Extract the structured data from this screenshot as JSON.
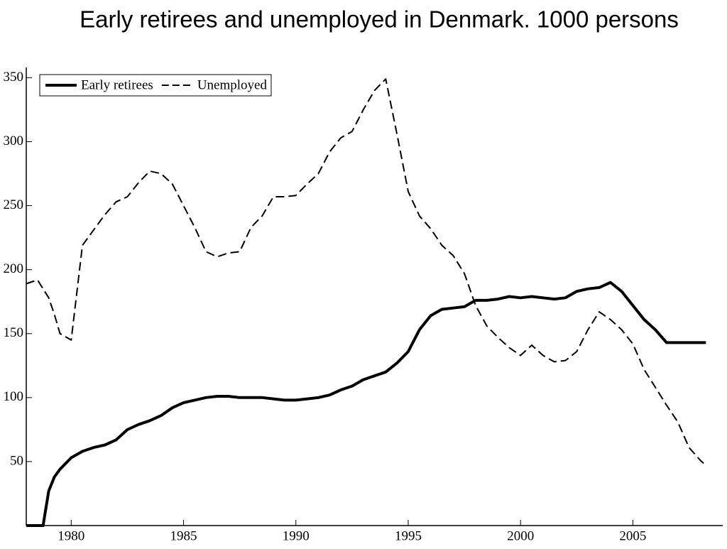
{
  "chart_data": {
    "type": "line",
    "title": "Early retirees and unemployed in Denmark. 1000 persons",
    "x": [
      1978,
      1978.5,
      1978.75,
      1979,
      1979.25,
      1979.5,
      1980,
      1980.5,
      1981,
      1981.5,
      1982,
      1982.5,
      1983,
      1983.5,
      1984,
      1984.5,
      1985,
      1985.5,
      1986,
      1986.5,
      1987,
      1987.5,
      1988,
      1988.5,
      1989,
      1989.5,
      1990,
      1990.5,
      1991,
      1991.5,
      1992,
      1992.5,
      1993,
      1993.5,
      1994,
      1994.5,
      1995,
      1995.5,
      1996,
      1996.5,
      1997,
      1997.5,
      1998,
      1998.5,
      1999,
      1999.5,
      2000,
      2000.5,
      2001,
      2001.5,
      2002,
      2002.5,
      2003,
      2003.5,
      2004,
      2004.5,
      2005,
      2005.5,
      2006,
      2006.5,
      2007,
      2007.5,
      2008,
      2008.25
    ],
    "series": [
      {
        "name": "Early retirees",
        "color": "#000000",
        "dash": false,
        "values": [
          0,
          0,
          0,
          27,
          38,
          44,
          53,
          58,
          61,
          63,
          67,
          75,
          79,
          82,
          86,
          92,
          96,
          98,
          100,
          101,
          101,
          100,
          100,
          100,
          99,
          98,
          98,
          99,
          100,
          102,
          106,
          109,
          114,
          117,
          120,
          127,
          136,
          153,
          164,
          169,
          170,
          171,
          176,
          176,
          177,
          179,
          178,
          179,
          178,
          177,
          178,
          183,
          185,
          186,
          190,
          183,
          172,
          161,
          153,
          143,
          143,
          143,
          143,
          143
        ]
      },
      {
        "name": "Unemployed",
        "color": "#000000",
        "dash": true,
        "values": [
          189,
          192,
          185,
          178,
          165,
          150,
          145,
          219,
          231,
          243,
          253,
          257,
          268,
          277,
          275,
          267,
          250,
          233,
          214,
          210,
          213,
          214,
          233,
          242,
          257,
          257,
          258,
          267,
          275,
          292,
          303,
          308,
          325,
          340,
          349,
          306,
          261,
          242,
          232,
          219,
          211,
          197,
          172,
          156,
          147,
          139,
          133,
          141,
          133,
          128,
          129,
          136,
          153,
          167,
          161,
          153,
          142,
          122,
          108,
          94,
          81,
          61,
          51,
          47
        ]
      }
    ],
    "xlim": [
      1978,
      2009
    ],
    "xticks": [
      1980,
      1985,
      1990,
      1995,
      2000,
      2005
    ],
    "ylim": [
      0,
      358
    ],
    "yticks": [
      50,
      100,
      150,
      200,
      250,
      300,
      350
    ],
    "legend": "upper left"
  }
}
